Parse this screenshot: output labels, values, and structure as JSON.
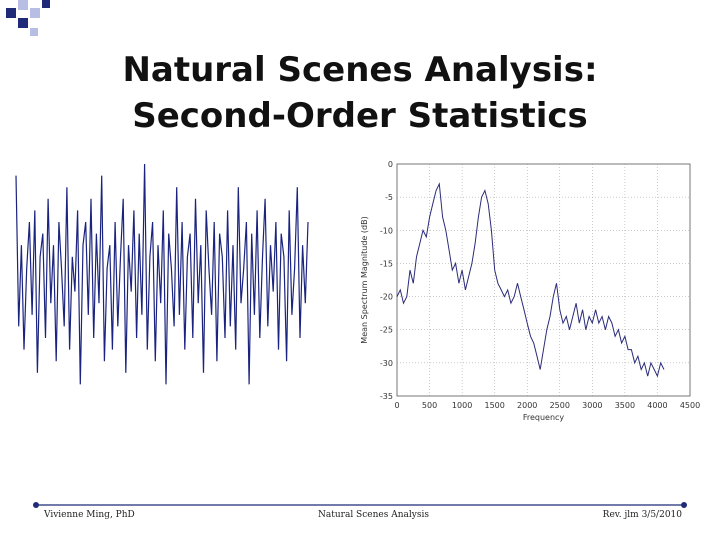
{
  "slide": {
    "title_line1": "Natural Scenes Analysis:",
    "title_line2": "Second-Order Statistics",
    "colors": {
      "corner_blue": "#1f2a78",
      "corner_light": "#b8bde4",
      "waveform": "#1a237e",
      "spectrum": "#2b2b7a",
      "footer_line": "#1f2a78"
    }
  },
  "footer": {
    "author": "Vivienne Ming, PhD",
    "course": "Natural Scenes Analysis",
    "revision": "Rev. jlm 3/5/2010"
  },
  "chart_data": [
    {
      "type": "line",
      "title": "",
      "xlabel": "",
      "ylabel": "",
      "axes_visible": false,
      "series": [
        {
          "values": [
            0.9,
            -0.4,
            0.3,
            -0.6,
            0.1,
            0.5,
            -0.3,
            0.6,
            -0.8,
            0.2,
            0.4,
            -0.5,
            0.7,
            -0.2,
            0.3,
            -0.7,
            0.5,
            0.1,
            -0.4,
            0.8,
            -0.6,
            0.2,
            -0.1,
            0.6,
            -0.9,
            0.3,
            0.5,
            -0.3,
            0.7,
            -0.5,
            0.4,
            -0.2,
            0.9,
            -0.7,
            0.1,
            0.3,
            -0.6,
            0.5,
            -0.4,
            0.2,
            0.7,
            -0.8,
            0.3,
            -0.1,
            0.6,
            -0.5,
            0.4,
            -0.3,
            1.0,
            -0.6,
            0.2,
            0.5,
            -0.7,
            0.3,
            -0.2,
            0.6,
            -0.9,
            0.4,
            0.1,
            -0.4,
            0.8,
            -0.3,
            0.5,
            -0.6,
            0.2,
            0.4,
            -0.5,
            0.7,
            -0.2,
            0.3,
            -0.8,
            0.6,
            0.1,
            -0.3,
            0.5,
            -0.7,
            0.4,
            0.2,
            -0.5,
            0.6,
            -0.4,
            0.3,
            -0.6,
            0.8,
            -0.2,
            0.1,
            0.5,
            -0.9,
            0.4,
            -0.3,
            0.6,
            -0.5,
            0.2,
            0.7,
            -0.4,
            0.3,
            -0.1,
            0.5,
            -0.6,
            0.4,
            0.2,
            -0.7,
            0.6,
            -0.3,
            0.1,
            0.8,
            -0.5,
            0.3,
            -0.2,
            0.5
          ]
        }
      ]
    },
    {
      "type": "line",
      "title": "",
      "xlabel": "Frequency",
      "ylabel": "Mean Spectrum Magnitude (dB)",
      "xlim": [
        0,
        4500
      ],
      "ylim": [
        -35,
        0
      ],
      "xticks": [
        0,
        500,
        1000,
        1500,
        2000,
        2500,
        3000,
        3500,
        4000,
        4500
      ],
      "yticks": [
        0,
        -5,
        -10,
        -15,
        -20,
        -25,
        -30,
        -35
      ],
      "grid": true,
      "x": [
        0,
        50,
        100,
        150,
        200,
        250,
        300,
        350,
        400,
        450,
        500,
        550,
        600,
        650,
        700,
        750,
        800,
        850,
        900,
        950,
        1000,
        1050,
        1100,
        1150,
        1200,
        1250,
        1300,
        1350,
        1400,
        1450,
        1500,
        1550,
        1600,
        1650,
        1700,
        1750,
        1800,
        1850,
        1900,
        1950,
        2000,
        2050,
        2100,
        2150,
        2200,
        2250,
        2300,
        2350,
        2400,
        2450,
        2500,
        2550,
        2600,
        2650,
        2700,
        2750,
        2800,
        2850,
        2900,
        2950,
        3000,
        3050,
        3100,
        3150,
        3200,
        3250,
        3300,
        3350,
        3400,
        3450,
        3500,
        3550,
        3600,
        3650,
        3700,
        3750,
        3800,
        3850,
        3900,
        3950,
        4000,
        4050,
        4100
      ],
      "series": [
        {
          "values": [
            -20,
            -19,
            -21,
            -20,
            -16,
            -18,
            -14,
            -12,
            -10,
            -11,
            -8,
            -6,
            -4,
            -3,
            -8,
            -10,
            -13,
            -16,
            -15,
            -18,
            -16,
            -19,
            -17,
            -15,
            -12,
            -8,
            -5,
            -4,
            -6,
            -10,
            -16,
            -18,
            -19,
            -20,
            -19,
            -21,
            -20,
            -18,
            -20,
            -22,
            -24,
            -26,
            -27,
            -29,
            -31,
            -28,
            -25,
            -23,
            -20,
            -18,
            -22,
            -24,
            -23,
            -25,
            -23,
            -21,
            -24,
            -22,
            -25,
            -23,
            -24,
            -22,
            -24,
            -23,
            -25,
            -23,
            -24,
            -26,
            -25,
            -27,
            -26,
            -28,
            -28,
            -30,
            -29,
            -31,
            -30,
            -32,
            -30,
            -31,
            -32,
            -30,
            -31
          ]
        }
      ]
    }
  ]
}
